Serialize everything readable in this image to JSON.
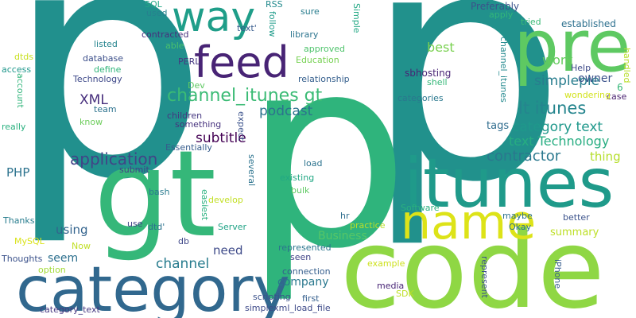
{
  "words": [
    {
      "text": "p",
      "color": "#21908d"
    },
    {
      "text": "p",
      "color": "#21918c"
    },
    {
      "text": "p",
      "color": "#2fb47c"
    },
    {
      "text": "code",
      "color": "#8fd744"
    },
    {
      "text": "gt",
      "color": "#35b779"
    },
    {
      "text": "itunes",
      "color": "#1f9a8a"
    },
    {
      "text": "category",
      "color": "#31688e"
    },
    {
      "text": "pre",
      "color": "#5ec962"
    },
    {
      "text": "name",
      "color": "#dde318"
    },
    {
      "text": "feed",
      "color": "#482475"
    },
    {
      "text": "way",
      "color": "#1f9e89"
    },
    {
      "text": "channel_itunes gt",
      "color": "#3bbb75"
    },
    {
      "text": "lt itunes",
      "color": "#25858e"
    },
    {
      "text": "category text",
      "color": "#1f988b"
    },
    {
      "text": "contractor",
      "color": "#2a788e"
    },
    {
      "text": "text Technology",
      "color": "#26ad81"
    },
    {
      "text": "application",
      "color": "#414487"
    },
    {
      "text": "subtitle",
      "color": "#440154"
    },
    {
      "text": "podcast",
      "color": "#2c728e"
    },
    {
      "text": "simplepie",
      "color": "#287d8e"
    },
    {
      "text": "channel",
      "color": "#287c8e"
    },
    {
      "text": "Business",
      "color": "#56c667"
    },
    {
      "text": "XML",
      "color": "#472f7d"
    },
    {
      "text": "work",
      "color": "#65cb5e"
    },
    {
      "text": "best",
      "color": "#7ad151"
    },
    {
      "text": "owner",
      "color": "#3b528b"
    },
    {
      "text": "thing",
      "color": "#b5de2b"
    },
    {
      "text": "summary",
      "color": "#bddf26"
    },
    {
      "text": "need",
      "color": "#3e4a89"
    },
    {
      "text": "using",
      "color": "#33638d"
    },
    {
      "text": "seem",
      "color": "#2d708e"
    },
    {
      "text": "company",
      "color": "#2a788e"
    },
    {
      "text": "tags",
      "color": "#2f6c8e"
    },
    {
      "text": "PHP",
      "color": "#2c728e"
    },
    {
      "text": "6",
      "color": "#35b779"
    },
    {
      "text": "SQL",
      "color": "#22a785"
    },
    {
      "text": "used",
      "color": "#26828e"
    },
    {
      "text": "RSS",
      "color": "#238a8d"
    },
    {
      "text": "sure",
      "color": "#287d8e"
    },
    {
      "text": "Simple",
      "color": "#22a884"
    },
    {
      "text": "Preferably",
      "color": "#3b528b"
    },
    {
      "text": "apply",
      "color": "#32b67a"
    },
    {
      "text": "tried",
      "color": "#3aba76"
    },
    {
      "text": "established",
      "color": "#2d708e"
    },
    {
      "text": "contracted",
      "color": "#472f7d"
    },
    {
      "text": "library",
      "color": "#2b748e"
    },
    {
      "text": "follow",
      "color": "#1e9b8a"
    },
    {
      "text": "text'",
      "color": "#375b8d"
    },
    {
      "text": "channel_itunes",
      "color": "#23898e"
    },
    {
      "text": "listed",
      "color": "#25848e"
    },
    {
      "text": "able",
      "color": "#4ac16d"
    },
    {
      "text": "approved",
      "color": "#4ec36b"
    },
    {
      "text": "handled",
      "color": "#b8de29"
    },
    {
      "text": "dtds",
      "color": "#c8e020"
    },
    {
      "text": "database",
      "color": "#3c4f8a"
    },
    {
      "text": "PERL",
      "color": "#453781"
    },
    {
      "text": "Education",
      "color": "#77d153"
    },
    {
      "text": "Help",
      "color": "#3e4a89"
    },
    {
      "text": "access",
      "color": "#1f978b"
    },
    {
      "text": "define",
      "color": "#31b57b"
    },
    {
      "text": "sbhosting",
      "color": "#482475"
    },
    {
      "text": "shell",
      "color": "#35b779"
    },
    {
      "text": "Technology",
      "color": "#3e4989"
    },
    {
      "text": "relationship",
      "color": "#355f8d"
    },
    {
      "text": "case",
      "color": "#481f70"
    },
    {
      "text": "Dev",
      "color": "#5ec962"
    },
    {
      "text": "team",
      "color": "#2c728e"
    },
    {
      "text": "wondering",
      "color": "#d2e21b"
    },
    {
      "text": "account",
      "color": "#31b57b"
    },
    {
      "text": "categories",
      "color": "#2a788e"
    },
    {
      "text": "know",
      "color": "#6ccd5a"
    },
    {
      "text": "children",
      "color": "#453781"
    },
    {
      "text": "expect",
      "color": "#3b528b"
    },
    {
      "text": "really",
      "color": "#2ab07f"
    },
    {
      "text": "something",
      "color": "#46327e"
    },
    {
      "text": "Essentially",
      "color": "#365c8d"
    },
    {
      "text": "load",
      "color": "#2c738e"
    },
    {
      "text": "several",
      "color": "#2c738e"
    },
    {
      "text": "submit",
      "color": "#424086"
    },
    {
      "text": "existing",
      "color": "#22a884"
    },
    {
      "text": "bash",
      "color": "#297a8e"
    },
    {
      "text": "easiest",
      "color": "#2ab07f"
    },
    {
      "text": "develop",
      "color": "#c2df23"
    },
    {
      "text": "bulk",
      "color": "#5ec962"
    },
    {
      "text": "hr",
      "color": "#2e6e8e"
    },
    {
      "text": "Software",
      "color": "#2ab07f"
    },
    {
      "text": "maybe",
      "color": "#2c728e"
    },
    {
      "text": "better",
      "color": "#3b528b"
    },
    {
      "text": "Thanks",
      "color": "#287d8e"
    },
    {
      "text": "use",
      "color": "#414487"
    },
    {
      "text": "dtd'",
      "color": "#2c728e"
    },
    {
      "text": "Server",
      "color": "#20a386"
    },
    {
      "text": "practice",
      "color": "#b8de29"
    },
    {
      "text": "Okay",
      "color": "#2c728e"
    },
    {
      "text": "MySQL",
      "color": "#dae319"
    },
    {
      "text": "Now",
      "color": "#c0df25"
    },
    {
      "text": "db",
      "color": "#3f4788"
    },
    {
      "text": "represented",
      "color": "#2b758e"
    },
    {
      "text": "Thoughts",
      "color": "#3b528b"
    },
    {
      "text": "seen",
      "color": "#414487"
    },
    {
      "text": "example",
      "color": "#cde11d"
    },
    {
      "text": "iPhone",
      "color": "#365c8d"
    },
    {
      "text": "option",
      "color": "#a2da37"
    },
    {
      "text": "connection",
      "color": "#355e8d"
    },
    {
      "text": "represent",
      "color": "#3b528b"
    },
    {
      "text": "media",
      "color": "#482576"
    },
    {
      "text": "SDK",
      "color": "#bddf26"
    },
    {
      "text": "scripting",
      "color": "#3b518b"
    },
    {
      "text": "first",
      "color": "#355f8d"
    },
    {
      "text": "category_text",
      "color": "#453781"
    },
    {
      "text": "simplexml_load_file",
      "color": "#3e4a89"
    }
  ]
}
